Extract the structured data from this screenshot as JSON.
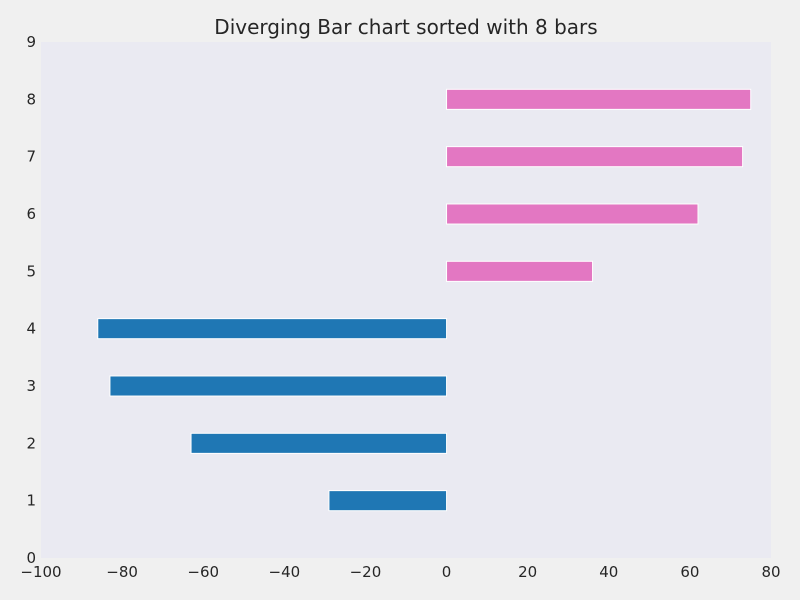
{
  "chart_data": {
    "type": "bar",
    "orientation": "horizontal",
    "title": "Diverging Bar chart sorted with 8 bars",
    "xlabel": "",
    "ylabel": "",
    "xlim": [
      -100,
      80
    ],
    "ylim": [
      0,
      9
    ],
    "x_ticks": [
      "−100",
      "−80",
      "−60",
      "−40",
      "−20",
      "0",
      "20",
      "40",
      "60",
      "80"
    ],
    "x_tick_values": [
      -100,
      -80,
      -60,
      -40,
      -20,
      0,
      20,
      40,
      60,
      80
    ],
    "y_ticks": [
      "0",
      "1",
      "2",
      "3",
      "4",
      "5",
      "6",
      "7",
      "8",
      "9"
    ],
    "y_tick_values": [
      0,
      1,
      2,
      3,
      4,
      5,
      6,
      7,
      8,
      9
    ],
    "grid": false,
    "bars": [
      {
        "y": 1,
        "value": -29
      },
      {
        "y": 2,
        "value": -63
      },
      {
        "y": 3,
        "value": -83
      },
      {
        "y": 4,
        "value": -86
      },
      {
        "y": 5,
        "value": 36
      },
      {
        "y": 6,
        "value": 62
      },
      {
        "y": 7,
        "value": 73
      },
      {
        "y": 8,
        "value": 75
      }
    ],
    "colors": {
      "negative": "#1f77b4",
      "positive": "#e377c2",
      "plot_background": "#eaeaf2",
      "figure_background": "#f0f0f0",
      "bar_edge": "#ffffff"
    }
  }
}
